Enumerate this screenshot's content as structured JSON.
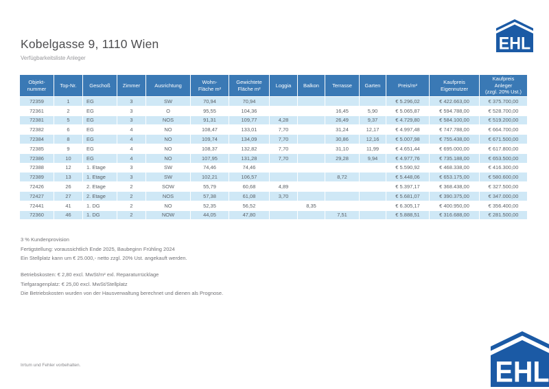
{
  "header": {
    "title": "Kobelgasse 9, 1110 Wien",
    "subtitle": "Verfügbarkeitsliste Anleger"
  },
  "logo": {
    "text": "EHL",
    "blue": "#1b5aa5"
  },
  "colors": {
    "table_header_bg": "#3a79b5",
    "row_alt_bg": "#cfe8f6",
    "header_text": "#ffffff",
    "body_text": "#5a6066"
  },
  "table": {
    "columns": [
      "Objekt-\nnummer",
      "Top-Nr.",
      "Geschoß",
      "Zimmer",
      "Ausrichtung",
      "Wohn-\nFläche m²",
      "Gewichtete\nFläche m²",
      "Loggia",
      "Balkon",
      "Terrasse",
      "Garten",
      "Preis/m²",
      "Kaufpreis\nEigennutzer",
      "Kaufpreis\nAnleger\n(zzgl. 20% Ust.)"
    ],
    "rows": [
      [
        "72359",
        "1",
        "EG",
        "3",
        "SW",
        "70,94",
        "70,94",
        "",
        "",
        "",
        "",
        "€ 5.296,02",
        "€ 422.663,00",
        "€ 375.700,00"
      ],
      [
        "72361",
        "2",
        "EG",
        "3",
        "O",
        "95,55",
        "104,36",
        "",
        "",
        "16,45",
        "5,90",
        "€ 5.065,87",
        "€ 594.788,00",
        "€ 528.700,00"
      ],
      [
        "72381",
        "5",
        "EG",
        "3",
        "NOS",
        "91,31",
        "109,77",
        "4,28",
        "",
        "26,49",
        "9,37",
        "€ 4.729,80",
        "€ 584.100,00",
        "€ 519.200,00"
      ],
      [
        "72382",
        "6",
        "EG",
        "4",
        "NO",
        "108,47",
        "133,01",
        "7,70",
        "",
        "31,24",
        "12,17",
        "€ 4.997,48",
        "€ 747.788,00",
        "€ 664.700,00"
      ],
      [
        "72384",
        "8",
        "EG",
        "4",
        "NO",
        "109,74",
        "134,09",
        "7,70",
        "",
        "30,86",
        "12,16",
        "€ 5.007,98",
        "€ 755.438,00",
        "€ 671.500,00"
      ],
      [
        "72385",
        "9",
        "EG",
        "4",
        "NO",
        "108,37",
        "132,82",
        "7,70",
        "",
        "31,10",
        "11,99",
        "€ 4.651,44",
        "€ 695.000,00",
        "€ 617.800,00"
      ],
      [
        "72386",
        "10",
        "EG",
        "4",
        "NO",
        "107,95",
        "131,28",
        "7,70",
        "",
        "29,28",
        "9,94",
        "€ 4.977,76",
        "€ 735.188,00",
        "€ 653.500,00"
      ],
      [
        "72388",
        "12",
        "1. Etage",
        "3",
        "SW",
        "74,46",
        "74,46",
        "",
        "",
        "",
        "",
        "€ 5.590,92",
        "€ 468.338,00",
        "€ 416.300,00"
      ],
      [
        "72389",
        "13",
        "1. Etage",
        "3",
        "SW",
        "102,21",
        "106,57",
        "",
        "",
        "8,72",
        "",
        "€ 5.448,06",
        "€ 653.175,00",
        "€ 580.600,00"
      ],
      [
        "72426",
        "26",
        "2. Etage",
        "2",
        "SOW",
        "55,79",
        "60,68",
        "4,89",
        "",
        "",
        "",
        "€ 5.397,17",
        "€ 368.438,00",
        "€ 327.500,00"
      ],
      [
        "72427",
        "27",
        "2. Etage",
        "2",
        "NOS",
        "57,38",
        "61,08",
        "3,70",
        "",
        "",
        "",
        "€ 5.681,07",
        "€ 390.375,00",
        "€ 347.000,00"
      ],
      [
        "72441",
        "41",
        "1. DG",
        "2",
        "NO",
        "52,35",
        "56,52",
        "",
        "8,35",
        "",
        "",
        "€ 6.305,17",
        "€ 400.950,00",
        "€ 356.400,00"
      ],
      [
        "72360",
        "46",
        "1. DG",
        "2",
        "NOW",
        "44,05",
        "47,80",
        "",
        "",
        "7,51",
        "",
        "€ 5.888,51",
        "€ 316.688,00",
        "€ 281.500,00"
      ]
    ]
  },
  "notes": {
    "block1": [
      "3 % Kundenprovision",
      "Fertigstellung: voraussichtlich Ende 2025, Baubeginn Frühling 2024",
      "Ein Stellplatz kann um € 25.000,- netto zzgl. 20% Ust. angekauft werden."
    ],
    "block2": [
      "Betriebskosten: € 2,80 excl. MwSt/m² exl. Reparaturrücklage",
      "Tiefgaragenplatz: € 25,00 excl. MwSt/Stellplatz",
      "Die Betriebskosten wurden von der Hausverwaltung berechnet und dienen als Prognose."
    ]
  },
  "footer": {
    "disclaimer": "Irrtum und Fehler vorbehalten."
  }
}
